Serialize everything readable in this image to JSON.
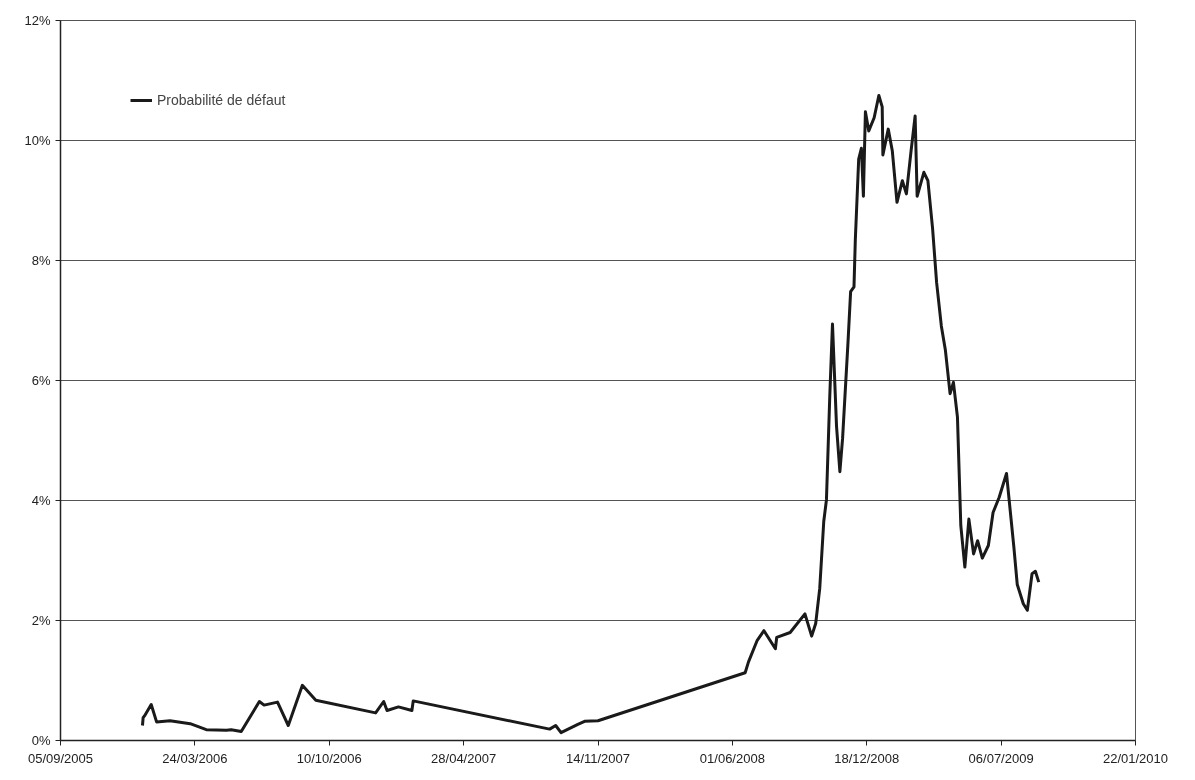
{
  "chart_data": {
    "type": "line",
    "x": [
      "2006-01-05",
      "2006-01-06",
      "2006-01-08",
      "2006-01-18",
      "2006-01-26",
      "2006-02-15",
      "2006-03-17",
      "2006-04-10",
      "2006-05-10",
      "2006-05-17",
      "2006-06-01",
      "2006-06-28",
      "2006-07-05",
      "2006-07-25",
      "2006-08-10",
      "2006-08-31",
      "2006-09-20",
      "2006-12-18",
      "2006-12-30",
      "2007-01-04",
      "2007-01-21",
      "2007-02-10",
      "2007-02-12",
      "2007-09-03",
      "2007-09-12",
      "2007-09-20",
      "2007-10-15",
      "2007-10-25",
      "2007-11-14",
      "2008-06-20",
      "2008-06-25",
      "2008-07-08",
      "2008-07-18",
      "2008-08-04",
      "2008-08-06",
      "2008-08-26",
      "2008-09-17",
      "2008-09-27",
      "2008-10-03",
      "2008-10-09",
      "2008-10-15",
      "2008-10-19",
      "2008-10-24",
      "2008-10-28",
      "2008-11-03",
      "2008-11-08",
      "2008-11-12",
      "2008-11-20",
      "2008-11-24",
      "2008-11-29",
      "2008-12-01",
      "2008-12-06",
      "2008-12-10",
      "2008-12-13",
      "2008-12-16",
      "2008-12-21",
      "2008-12-29",
      "2009-01-05",
      "2009-01-10",
      "2009-01-11",
      "2009-01-19",
      "2009-01-25",
      "2009-02-01",
      "2009-02-09",
      "2009-02-15",
      "2009-02-22",
      "2009-02-28",
      "2009-03-03",
      "2009-03-13",
      "2009-03-19",
      "2009-03-26",
      "2009-04-01",
      "2009-04-08",
      "2009-04-14",
      "2009-04-21",
      "2009-04-26",
      "2009-05-02",
      "2009-05-07",
      "2009-05-13",
      "2009-05-19",
      "2009-05-26",
      "2009-06-01",
      "2009-06-08",
      "2009-06-17",
      "2009-06-24",
      "2009-07-03",
      "2009-07-14",
      "2009-07-25",
      "2009-07-30",
      "2009-08-08",
      "2009-08-14",
      "2009-08-21",
      "2009-08-26",
      "2009-08-31"
    ],
    "series": [
      {
        "name": "Probabilité de défaut",
        "color": "#1a1a1a",
        "values": [
          0.25,
          0.38,
          0.41,
          0.6,
          0.31,
          0.33,
          0.28,
          0.18,
          0.17,
          0.18,
          0.15,
          0.65,
          0.59,
          0.64,
          0.25,
          0.92,
          0.67,
          0.46,
          0.65,
          0.5,
          0.56,
          0.5,
          0.66,
          0.19,
          0.25,
          0.13,
          0.27,
          0.32,
          0.33,
          1.13,
          1.31,
          1.67,
          1.83,
          1.53,
          1.72,
          1.8,
          2.11,
          1.74,
          1.95,
          2.53,
          3.65,
          4.01,
          5.75,
          6.94,
          5.24,
          4.48,
          5.03,
          6.62,
          7.48,
          7.56,
          8.35,
          9.69,
          9.87,
          9.07,
          10.48,
          10.16,
          10.38,
          10.75,
          10.56,
          9.76,
          10.19,
          9.83,
          8.97,
          9.33,
          9.11,
          9.83,
          10.41,
          9.07,
          9.47,
          9.33,
          8.53,
          7.63,
          6.91,
          6.51,
          5.78,
          5.97,
          5.39,
          3.58,
          2.89,
          3.69,
          3.11,
          3.33,
          3.04,
          3.25,
          3.8,
          4.05,
          4.45,
          3.22,
          2.6,
          2.28,
          2.17,
          2.78,
          2.82,
          2.64
        ]
      }
    ],
    "xlim": [
      "2005-09-05",
      "2010-01-22"
    ],
    "xticks": [
      {
        "value": "2005-09-05",
        "label": "05/09/2005"
      },
      {
        "value": "2006-03-24",
        "label": "24/03/2006"
      },
      {
        "value": "2006-10-10",
        "label": "10/10/2006"
      },
      {
        "value": "2007-04-28",
        "label": "28/04/2007"
      },
      {
        "value": "2007-11-14",
        "label": "14/11/2007"
      },
      {
        "value": "2008-06-01",
        "label": "01/06/2008"
      },
      {
        "value": "2008-12-18",
        "label": "18/12/2008"
      },
      {
        "value": "2009-07-06",
        "label": "06/07/2009"
      },
      {
        "value": "2010-01-22",
        "label": "22/01/2010"
      }
    ],
    "ylim": [
      0,
      12
    ],
    "yticks": [
      {
        "value": 0,
        "label": "0%"
      },
      {
        "value": 2,
        "label": "2%"
      },
      {
        "value": 4,
        "label": "4%"
      },
      {
        "value": 6,
        "label": "6%"
      },
      {
        "value": 8,
        "label": "8%"
      },
      {
        "value": 10,
        "label": "10%"
      },
      {
        "value": 12,
        "label": "12%"
      }
    ],
    "grid": "y",
    "legend": "top left",
    "line_style": "solid",
    "marker": "none"
  }
}
